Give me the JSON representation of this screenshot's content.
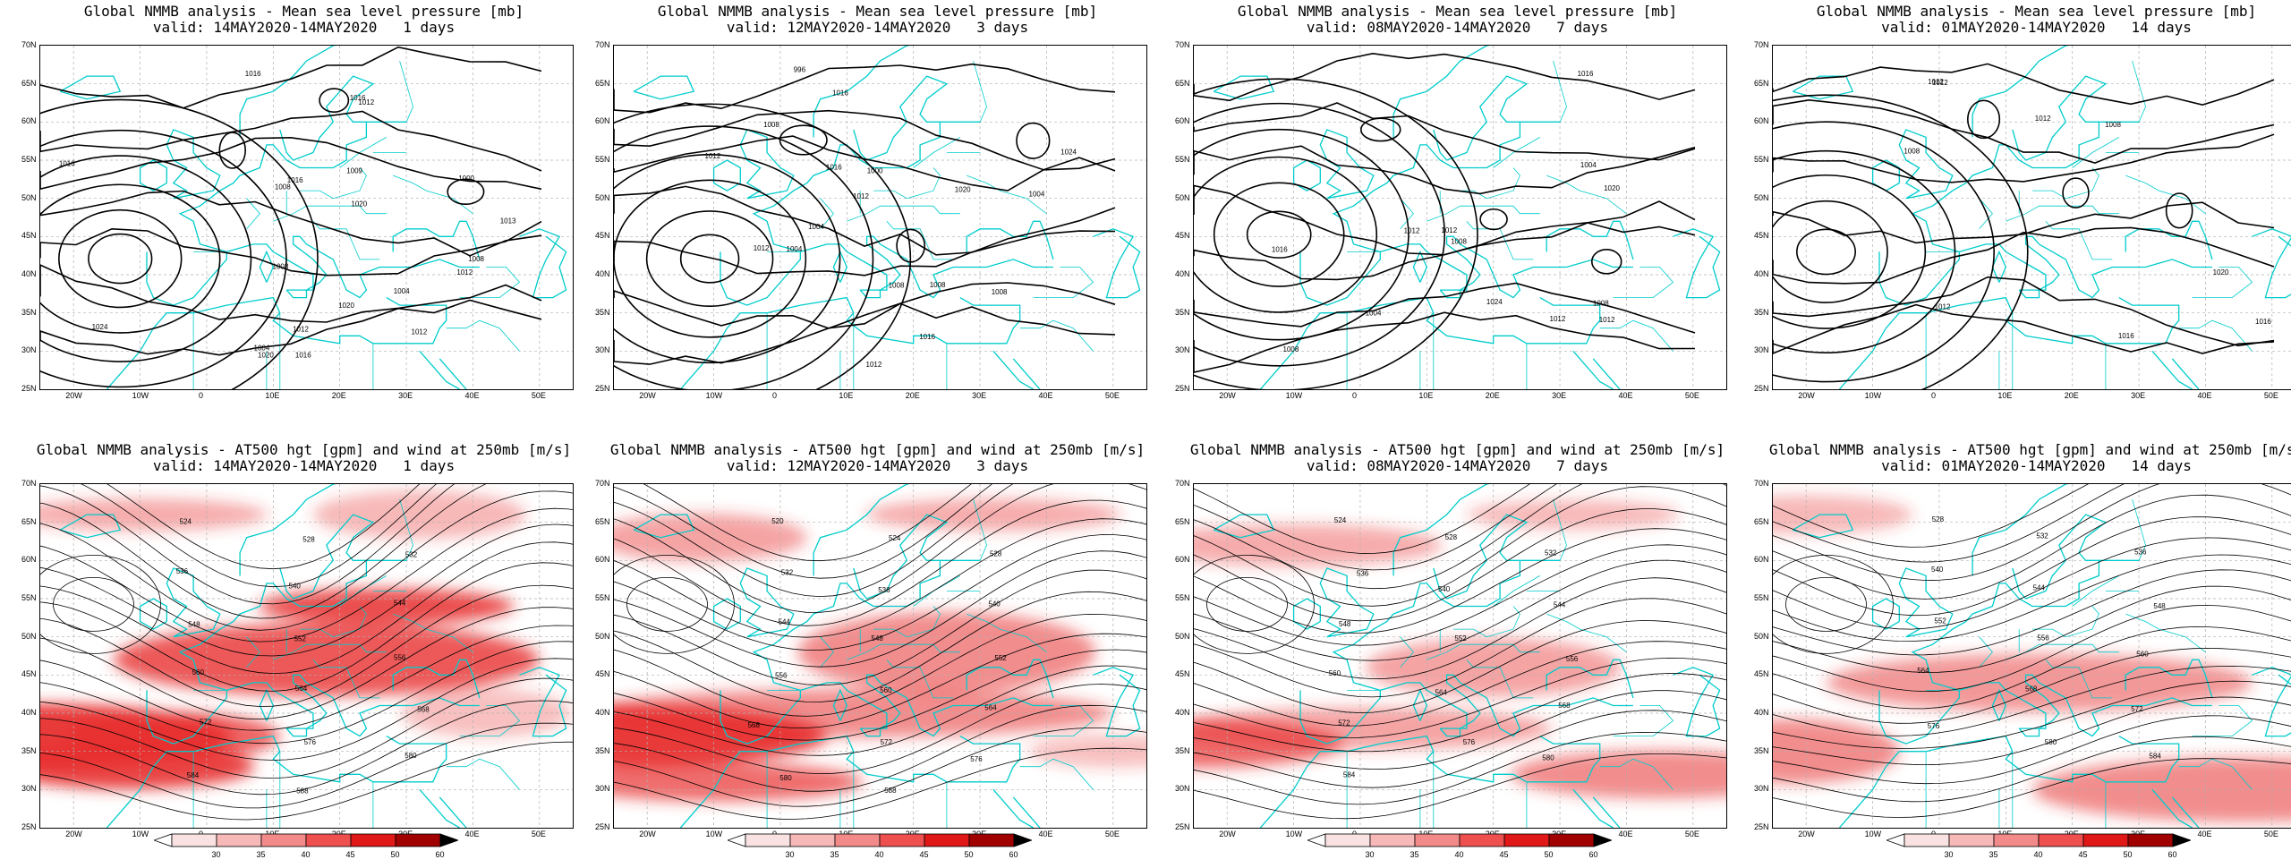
{
  "rows": [
    {
      "title_line1": "Global NMMB analysis - Mean sea level pressure [mb]",
      "kind": "mslp",
      "panels": [
        {
          "valid": "valid: 14MAY2020-14MAY2020   1 days",
          "contour_labels": [
            "1012",
            "1016",
            "1024",
            "1020",
            "1008",
            "1004",
            "1000",
            "1008",
            "1012",
            "1016",
            "1020",
            "1016",
            "1013",
            "1009",
            "1004",
            "1008",
            "1012",
            "1016",
            "1020",
            "1016",
            "1012"
          ]
        },
        {
          "valid": "valid: 12MAY2020-14MAY2020   3 days",
          "contour_labels": [
            "1016",
            "1012",
            "1008",
            "1004",
            "996",
            "1000",
            "1004",
            "1008",
            "1012",
            "1016",
            "1020",
            "1024",
            "1008",
            "1004",
            "1008",
            "1012",
            "1016",
            "1012"
          ]
        },
        {
          "valid": "valid: 08MAY2020-14MAY2020   7 days",
          "contour_labels": [
            "1004",
            "1008",
            "1012",
            "1016",
            "1020",
            "1024",
            "1012",
            "1008",
            "1004",
            "1012",
            "1016",
            "1012",
            "1008"
          ]
        },
        {
          "valid": "valid: 01MAY2020-14MAY2020   14 days",
          "contour_labels": [
            "1008",
            "1012",
            "1016",
            "1020",
            "1012",
            "1008",
            "1012",
            "1016",
            "1012"
          ]
        }
      ]
    },
    {
      "title_line1": "Global NMMB analysis - AT500 hgt [gpm] and wind at 250mb [m/s]",
      "kind": "z500",
      "panels": [
        {
          "valid": "valid: 14MAY2020-14MAY2020   1 days",
          "contour_labels": [
            "524",
            "528",
            "532",
            "536",
            "540",
            "544",
            "548",
            "552",
            "556",
            "560",
            "564",
            "568",
            "572",
            "576",
            "580",
            "584",
            "588"
          ]
        },
        {
          "valid": "valid: 12MAY2020-14MAY2020   3 days",
          "contour_labels": [
            "520",
            "524",
            "528",
            "532",
            "536",
            "540",
            "544",
            "548",
            "552",
            "556",
            "560",
            "564",
            "568",
            "572",
            "576",
            "580",
            "588"
          ]
        },
        {
          "valid": "valid: 08MAY2020-14MAY2020   7 days",
          "contour_labels": [
            "524",
            "528",
            "532",
            "536",
            "540",
            "544",
            "548",
            "552",
            "556",
            "560",
            "564",
            "568",
            "572",
            "576",
            "580",
            "584"
          ]
        },
        {
          "valid": "valid: 01MAY2020-14MAY2020   14 days",
          "contour_labels": [
            "528",
            "532",
            "536",
            "540",
            "544",
            "548",
            "552",
            "556",
            "560",
            "564",
            "568",
            "572",
            "576",
            "580",
            "584"
          ]
        }
      ]
    }
  ],
  "lat_labels": [
    "70N",
    "65N",
    "60N",
    "55N",
    "50N",
    "45N",
    "40N",
    "35N",
    "30N",
    "25N"
  ],
  "lon_labels": [
    "20W",
    "10W",
    "0",
    "10E",
    "20E",
    "30E",
    "40E",
    "50E"
  ],
  "colorbar": {
    "labels": [
      "30",
      "35",
      "40",
      "45",
      "50",
      "60"
    ],
    "colors": [
      "#ffffff",
      "#fbe2e2",
      "#f7b8b8",
      "#f28a8a",
      "#ee5050",
      "#e01818",
      "#a00000",
      "#000000"
    ]
  },
  "colors": {
    "coast": "#00cccc",
    "contour": "#000000",
    "grid": "#b0b0b0"
  }
}
